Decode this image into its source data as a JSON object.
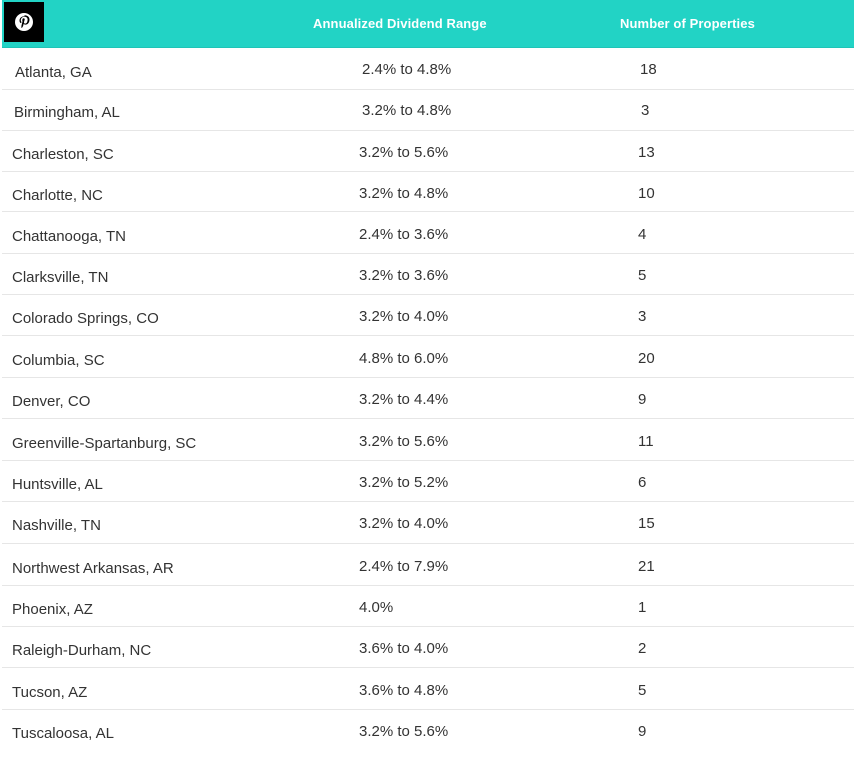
{
  "table": {
    "headers": {
      "city": "",
      "range": "Annualized Dividend Range",
      "count": "Number of Properties"
    },
    "rows": [
      {
        "city": "Atlanta, GA",
        "range": "2.4% to 4.8%",
        "count": "18"
      },
      {
        "city": "Birmingham, AL",
        "range": "3.2% to 4.8%",
        "count": "3"
      },
      {
        "city": "Charleston, SC",
        "range": "3.2% to 5.6%",
        "count": "13"
      },
      {
        "city": "Charlotte, NC",
        "range": "3.2% to 4.8%",
        "count": "10"
      },
      {
        "city": "Chattanooga, TN",
        "range": "2.4% to 3.6%",
        "count": "4"
      },
      {
        "city": "Clarksville, TN",
        "range": "3.2% to 3.6%",
        "count": "5"
      },
      {
        "city": "Colorado Springs, CO",
        "range": "3.2% to 4.0%",
        "count": "3"
      },
      {
        "city": "Columbia, SC",
        "range": "4.8% to 6.0%",
        "count": "20"
      },
      {
        "city": "Denver, CO",
        "range": "3.2% to 4.4%",
        "count": "9"
      },
      {
        "city": "Greenville-Spartanburg, SC",
        "range": "3.2% to 5.6%",
        "count": "11"
      },
      {
        "city": "Huntsville, AL",
        "range": "3.2% to 5.2%",
        "count": "6"
      },
      {
        "city": "Nashville, TN",
        "range": "3.2% to 4.0%",
        "count": "15"
      },
      {
        "city": "Northwest Arkansas, AR",
        "range": "2.4% to 7.9%",
        "count": "21"
      },
      {
        "city": "Phoenix, AZ",
        "range": "4.0%",
        "count": "1"
      },
      {
        "city": "Raleigh-Durham, NC",
        "range": "3.6% to 4.0%",
        "count": "2"
      },
      {
        "city": "Tucson, AZ",
        "range": "3.6% to 4.8%",
        "count": "5"
      },
      {
        "city": "Tuscaloosa, AL",
        "range": "3.2% to 5.6%",
        "count": "9"
      }
    ]
  },
  "icons": {
    "pin": "pinterest-icon"
  },
  "colors": {
    "header_bg": "#22d3c5",
    "header_text": "#ffffff",
    "row_divider": "#e6e6e6"
  }
}
